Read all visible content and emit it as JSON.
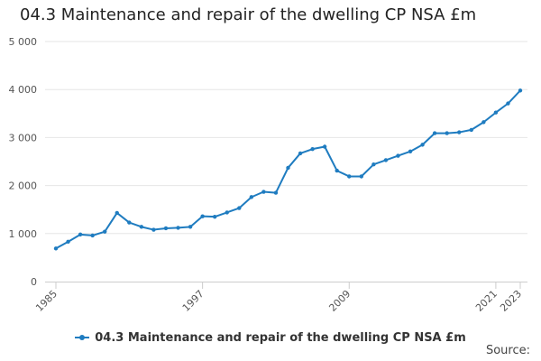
{
  "chart_data": {
    "type": "line",
    "title": "04.3 Maintenance and repair of the dwelling CP NSA £m",
    "xlabel": "",
    "ylabel": "",
    "x": [
      1985,
      1986,
      1987,
      1988,
      1989,
      1990,
      1991,
      1992,
      1993,
      1994,
      1995,
      1996,
      1997,
      1998,
      1999,
      2000,
      2001,
      2002,
      2003,
      2004,
      2005,
      2006,
      2007,
      2008,
      2009,
      2010,
      2011,
      2012,
      2013,
      2014,
      2015,
      2016,
      2017,
      2018,
      2019,
      2020,
      2021,
      2022,
      2023
    ],
    "xtick_labels": [
      "1985",
      "1997",
      "2009",
      "2021",
      "2023"
    ],
    "xtick_values": [
      1985,
      1997,
      2009,
      2021,
      2023
    ],
    "ylim": [
      0,
      5000
    ],
    "yticks": [
      0,
      1000,
      2000,
      3000,
      4000,
      5000
    ],
    "ytick_labels": [
      "0",
      "1 000",
      "2 000",
      "3 000",
      "4 000",
      "5 000"
    ],
    "grid": "horizontal",
    "legend_position": "bottom",
    "series": [
      {
        "name": "04.3 Maintenance and repair of the dwelling CP NSA £m",
        "color": "#1f7cc0",
        "values": [
          690,
          830,
          980,
          960,
          1040,
          1430,
          1230,
          1140,
          1080,
          1110,
          1120,
          1140,
          1360,
          1350,
          1440,
          1530,
          1760,
          1870,
          1850,
          2370,
          2670,
          2760,
          2810,
          2310,
          2190,
          2190,
          2440,
          2530,
          2620,
          2710,
          2850,
          3090,
          3090,
          3110,
          3160,
          3320,
          3520,
          3710,
          3980
        ]
      }
    ]
  },
  "source_label": "Source:"
}
